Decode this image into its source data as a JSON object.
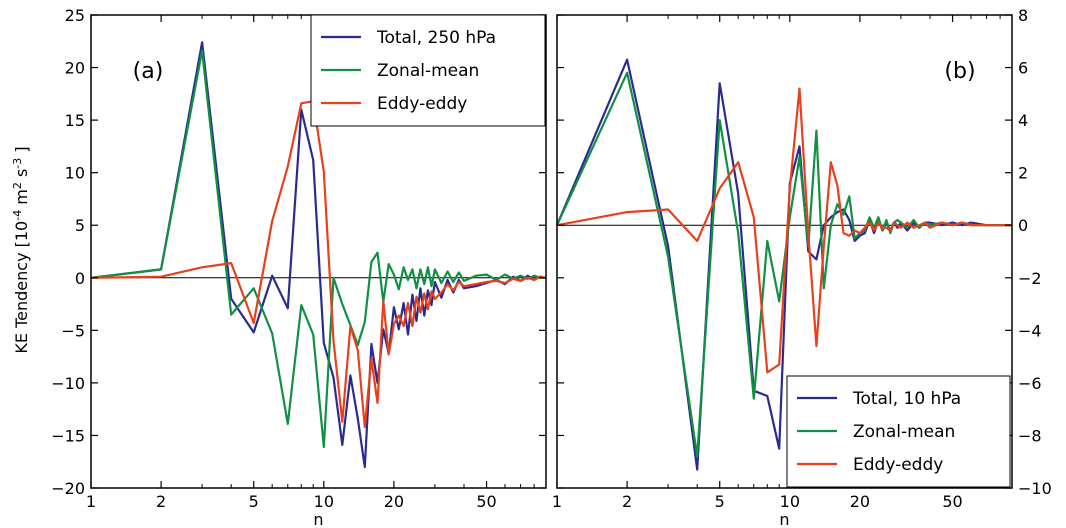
{
  "figure": {
    "ylabel_left_parts": [
      "KE Tendency [10",
      "-4",
      " m",
      "2",
      " s",
      "-3",
      " ]"
    ]
  },
  "chart_data": [
    {
      "panel": "(a)",
      "type": "line",
      "x_scale": "log",
      "xlim": [
        1,
        90
      ],
      "x_ticks": [
        1,
        2,
        5,
        10,
        20,
        50
      ],
      "xlabel": "n",
      "ylim": [
        -20,
        25
      ],
      "y_ticks": [
        -20,
        -15,
        -10,
        -5,
        0,
        5,
        10,
        15,
        20,
        25
      ],
      "y_axis_side": "left",
      "legend_position": "top-right",
      "zero_line": true,
      "series": [
        {
          "name": "Total, 250 hPa",
          "color": "#2b2b8f",
          "x": [
            1,
            2,
            3,
            4,
            5,
            6,
            7,
            8,
            9,
            10,
            11,
            12,
            13,
            14,
            15,
            16,
            17,
            18,
            19,
            20,
            21,
            22,
            23,
            24,
            25,
            26,
            27,
            28,
            29,
            30,
            32,
            34,
            36,
            38,
            40,
            45,
            50,
            55,
            60,
            65,
            70,
            75,
            80,
            85,
            90
          ],
          "y": [
            0,
            0.8,
            22.4,
            -2.0,
            -5.2,
            0.2,
            -2.9,
            16.0,
            11.2,
            -6.2,
            -9.5,
            -15.9,
            -9.3,
            -13.4,
            -18.0,
            -6.3,
            -10.0,
            -4.9,
            -7.2,
            -2.8,
            -4.9,
            -2.4,
            -5.4,
            -1.6,
            -4.1,
            -1.0,
            -3.6,
            -1.2,
            -2.6,
            -0.4,
            -1.9,
            -0.2,
            -1.4,
            -0.2,
            -1.0,
            -0.8,
            -0.5,
            -0.2,
            -0.6,
            0.1,
            -0.3,
            0.2,
            -0.2,
            0.1,
            0
          ]
        },
        {
          "name": "Zonal-mean",
          "color": "#119043",
          "x": [
            1,
            2,
            3,
            4,
            5,
            6,
            7,
            8,
            9,
            10,
            11,
            12,
            13,
            14,
            15,
            16,
            17,
            18,
            19,
            20,
            21,
            22,
            23,
            24,
            25,
            26,
            27,
            28,
            29,
            30,
            32,
            34,
            36,
            38,
            40,
            45,
            50,
            55,
            60,
            65,
            70,
            75,
            80,
            85,
            90
          ],
          "y": [
            0,
            0.8,
            21.6,
            -3.5,
            -1.0,
            -5.3,
            -13.9,
            -2.6,
            -5.4,
            -16.1,
            0,
            -2.5,
            -4.5,
            -6.4,
            -4.2,
            1.5,
            2.4,
            -2.3,
            1.3,
            0.3,
            -1.1,
            1.0,
            -0.2,
            0.8,
            -1.0,
            0.8,
            -0.6,
            1.0,
            -0.8,
            0.8,
            -0.5,
            0.6,
            -0.4,
            0.5,
            -0.3,
            0.2,
            0.3,
            -0.2,
            0.3,
            -0.1,
            0.2,
            -0.1,
            0.2,
            0,
            0
          ]
        },
        {
          "name": "Eddy-eddy",
          "color": "#e8401c",
          "x": [
            1,
            2,
            3,
            4,
            5,
            6,
            7,
            8,
            9,
            10,
            11,
            12,
            13,
            14,
            15,
            16,
            17,
            18,
            19,
            20,
            21,
            22,
            23,
            24,
            25,
            26,
            27,
            28,
            29,
            30,
            32,
            34,
            36,
            38,
            40,
            45,
            50,
            55,
            60,
            65,
            70,
            75,
            80,
            85,
            90
          ],
          "y": [
            0,
            0.1,
            1.0,
            1.4,
            -4.3,
            5.4,
            10.6,
            16.6,
            16.8,
            10.1,
            -6.0,
            -13.7,
            -4.6,
            -6.9,
            -14.2,
            -7.7,
            -11.9,
            -2.2,
            -7.3,
            -4.4,
            -3.6,
            -4.6,
            -2.4,
            -4.6,
            -1.8,
            -3.3,
            -1.5,
            -3.0,
            -1.3,
            -2.0,
            -1.4,
            -0.6,
            -1.2,
            -0.4,
            -0.8,
            -0.6,
            -0.4,
            -0.3,
            -0.5,
            -0.1,
            -0.3,
            0,
            -0.2,
            0.1,
            0
          ]
        }
      ]
    },
    {
      "panel": "(b)",
      "type": "line",
      "x_scale": "log",
      "xlim": [
        1,
        90
      ],
      "x_ticks": [
        1,
        2,
        5,
        10,
        20,
        50
      ],
      "xlabel": "n",
      "ylim": [
        -10,
        8
      ],
      "y_ticks": [
        -10,
        -8,
        -6,
        -4,
        -2,
        0,
        2,
        4,
        6,
        8
      ],
      "y_axis_side": "right",
      "legend_position": "bottom-right",
      "zero_line": true,
      "series": [
        {
          "name": "Total, 10 hPa",
          "color": "#2b2b8f",
          "x": [
            1,
            2,
            3,
            4,
            5,
            6,
            7,
            8,
            9,
            10,
            11,
            12,
            13,
            14,
            15,
            16,
            17,
            18,
            19,
            20,
            21,
            22,
            23,
            24,
            25,
            26,
            27,
            28,
            29,
            30,
            32,
            34,
            36,
            38,
            40,
            45,
            50,
            55,
            60,
            70,
            80,
            90
          ],
          "y": [
            0,
            6.3,
            -0.8,
            -9.3,
            5.4,
            1.2,
            -6.3,
            -6.5,
            -8.5,
            1.6,
            3.0,
            -1.0,
            -1.3,
            0,
            0.3,
            0.5,
            0.6,
            0.2,
            -0.6,
            -0.4,
            -0.3,
            0.2,
            -0.3,
            0.2,
            -0.2,
            0.1,
            -0.2,
            0.1,
            -0.1,
            0.1,
            -0.2,
            0.1,
            -0.1,
            0.1,
            0.1,
            0,
            0.1,
            0,
            0.1,
            0,
            0,
            0
          ]
        },
        {
          "name": "Zonal-mean",
          "color": "#119043",
          "x": [
            1,
            2,
            3,
            4,
            5,
            6,
            7,
            8,
            9,
            10,
            11,
            12,
            13,
            14,
            15,
            16,
            17,
            18,
            19,
            20,
            21,
            22,
            23,
            24,
            25,
            26,
            27,
            28,
            29,
            30,
            32,
            34,
            36,
            38,
            40,
            45,
            50,
            55,
            60,
            70,
            80,
            90
          ],
          "y": [
            0,
            5.8,
            -1.2,
            -8.8,
            4.0,
            -0.3,
            -6.6,
            -0.6,
            -2.9,
            0.3,
            2.6,
            -0.8,
            3.6,
            -2.4,
            0,
            0.8,
            0.4,
            1.1,
            -0.5,
            -0.3,
            -0.2,
            0.3,
            -0.1,
            0.3,
            -0.2,
            0.2,
            -0.3,
            0.1,
            0.2,
            0.1,
            -0.1,
            0.2,
            -0.1,
            0.1,
            0,
            0.1,
            0,
            0.1,
            0,
            0,
            0,
            0
          ]
        },
        {
          "name": "Eddy-eddy",
          "color": "#e8401c",
          "x": [
            1,
            2,
            3,
            4,
            5,
            6,
            7,
            8,
            9,
            10,
            11,
            12,
            13,
            14,
            15,
            16,
            17,
            18,
            19,
            20,
            21,
            22,
            23,
            24,
            25,
            26,
            27,
            28,
            29,
            30,
            32,
            34,
            36,
            38,
            40,
            45,
            50,
            55,
            60,
            70,
            80,
            90
          ],
          "y": [
            0,
            0.5,
            0.6,
            -0.6,
            1.4,
            2.4,
            0.3,
            -5.6,
            -5.3,
            1.4,
            5.2,
            -0.3,
            -4.6,
            -0.8,
            2.4,
            1.5,
            -0.3,
            -0.4,
            -0.2,
            -0.3,
            -0.1,
            0.1,
            -0.2,
            0.1,
            -0.1,
            -0.1,
            -0.2,
            0.1,
            0,
            -0.1,
            0.1,
            -0.1,
            0,
            0.1,
            -0.1,
            0.1,
            0,
            0.1,
            0,
            0,
            0,
            0
          ]
        }
      ]
    }
  ]
}
